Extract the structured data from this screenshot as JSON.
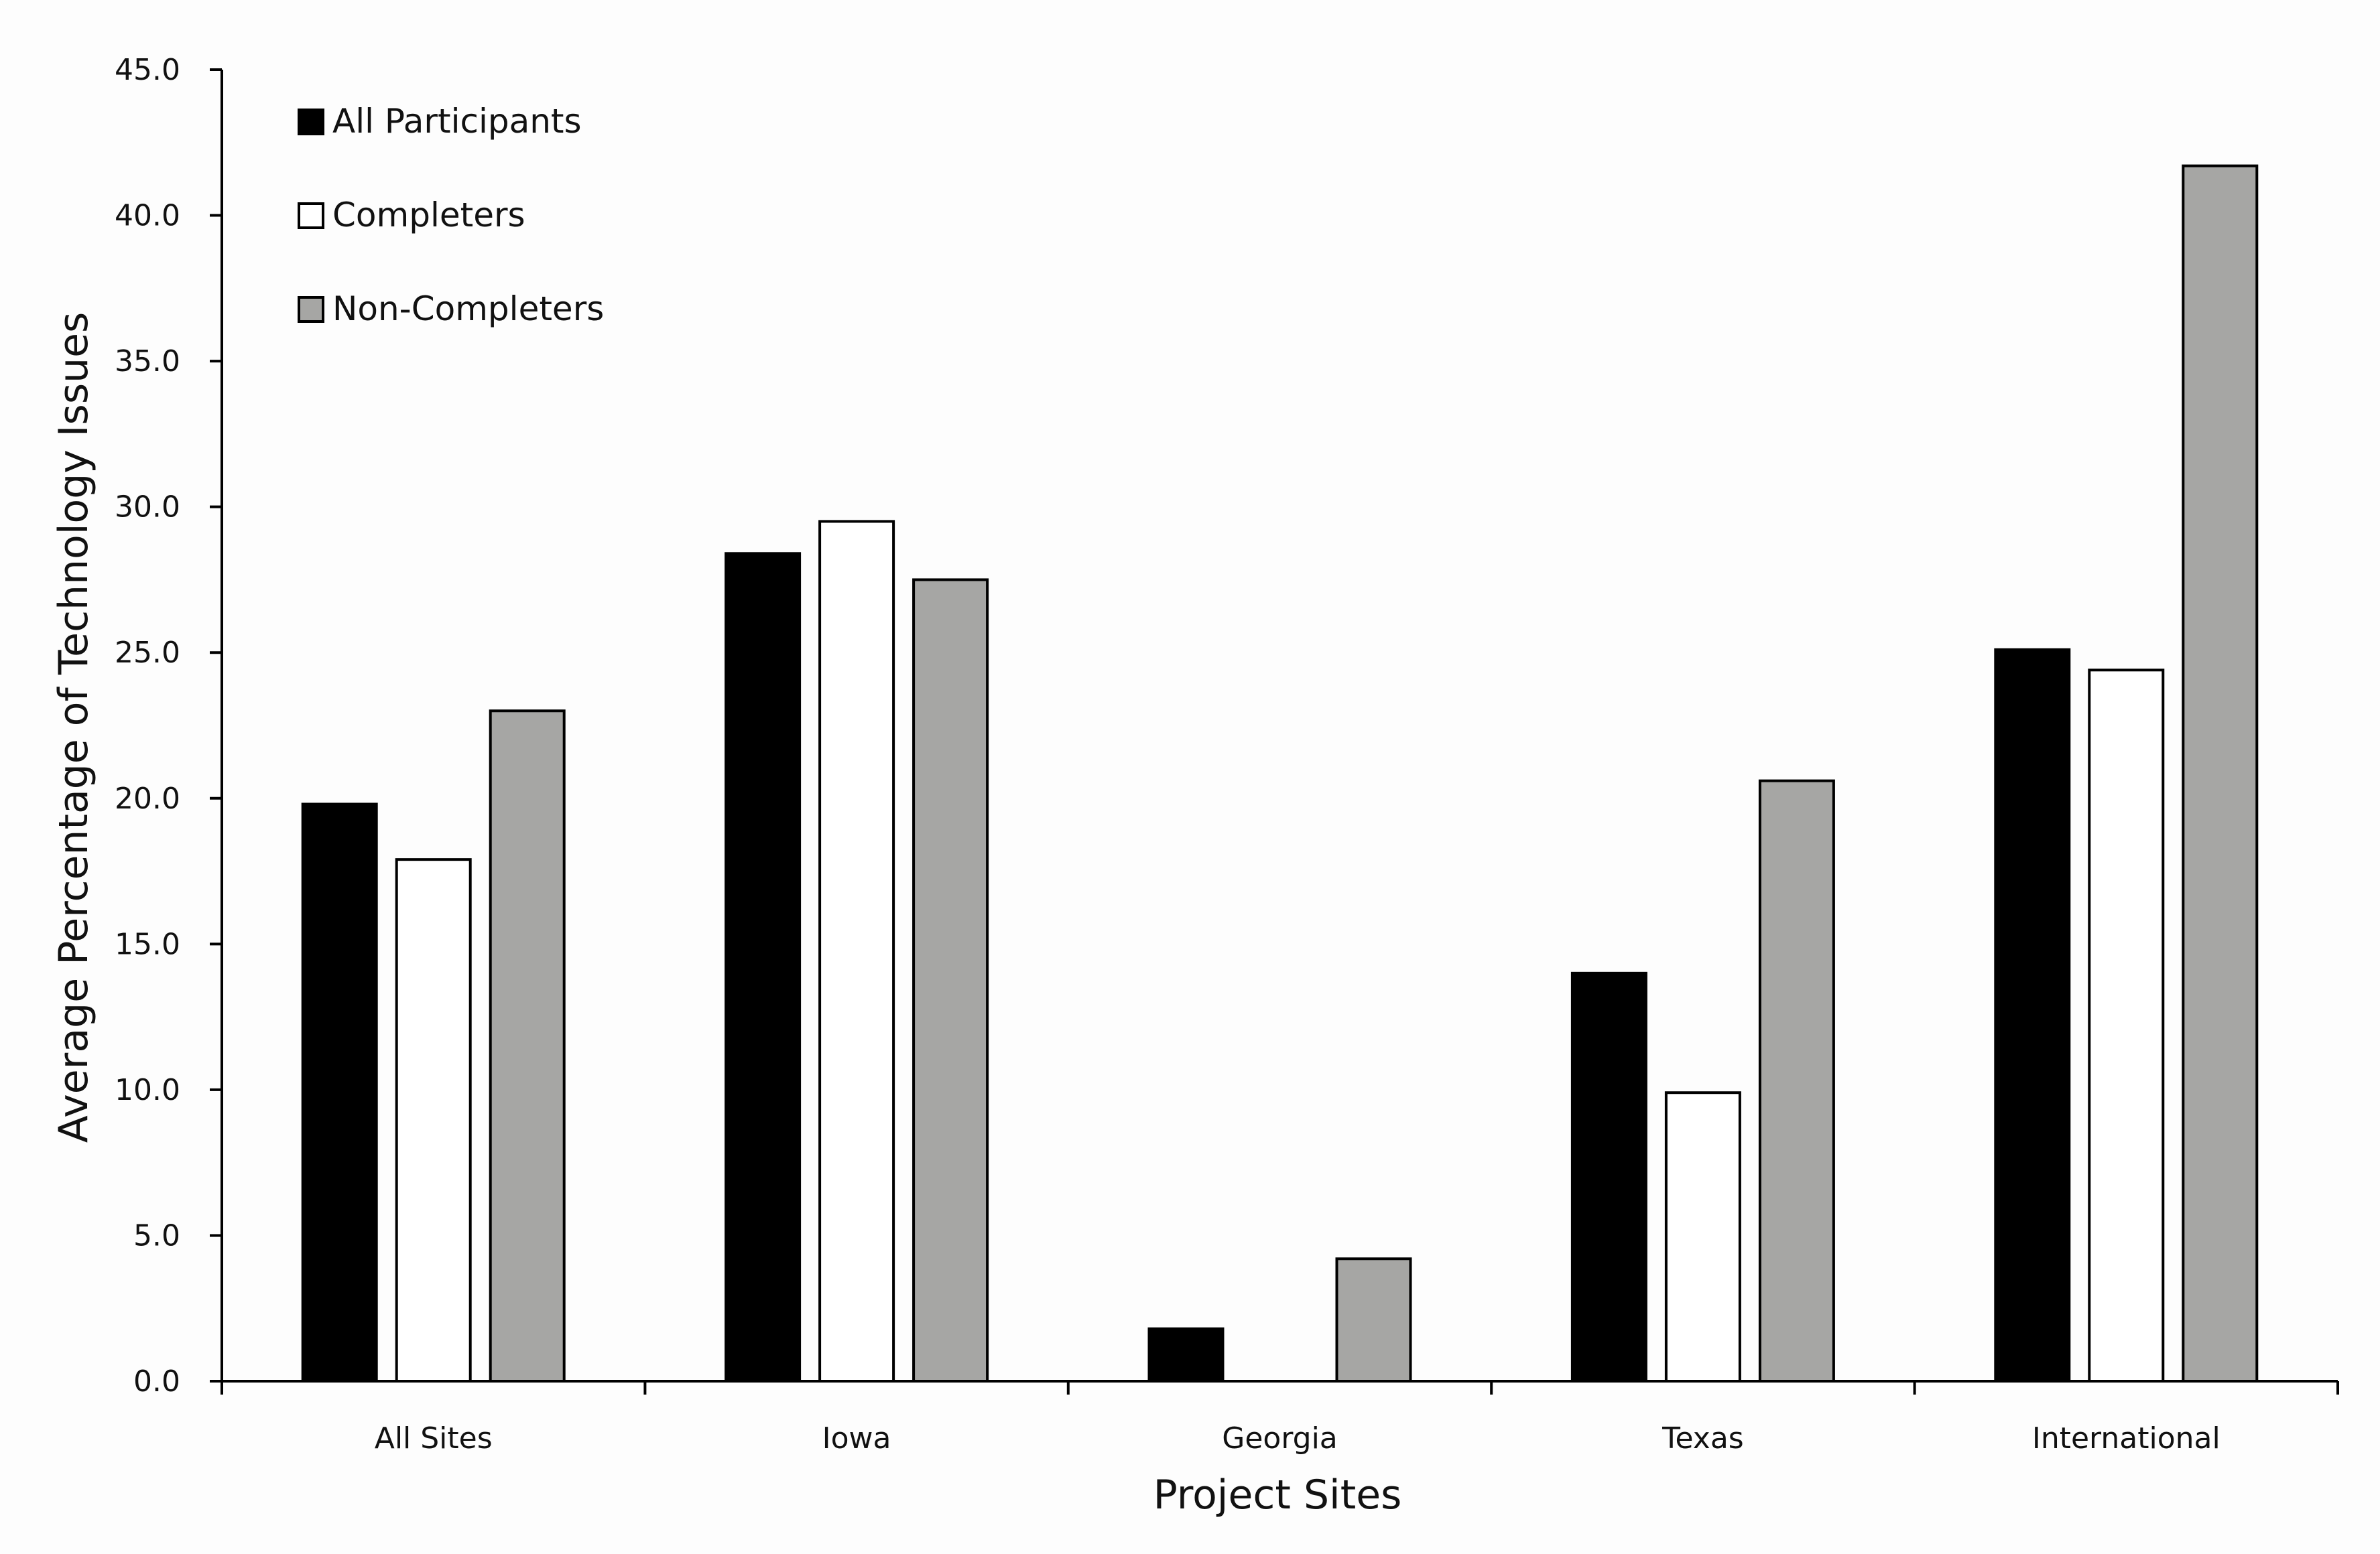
{
  "chart_data": {
    "type": "bar",
    "title": "",
    "xlabel": "Project Sites",
    "ylabel": "Average Percentage of Technology Issues",
    "categories": [
      "All Sites",
      "Iowa",
      "Georgia",
      "Texas",
      "International"
    ],
    "series": [
      {
        "name": "All Participants",
        "color": "#000000",
        "values": [
          19.8,
          28.4,
          1.8,
          14.0,
          25.1
        ]
      },
      {
        "name": "Completers",
        "color": "#ffffff",
        "values": [
          17.9,
          29.5,
          0.0,
          9.9,
          24.4
        ]
      },
      {
        "name": "Non-Completers",
        "color": "#a6a6a4",
        "values": [
          23.0,
          27.5,
          4.2,
          20.6,
          41.7
        ]
      }
    ],
    "ylim": [
      0,
      45
    ],
    "yticks": [
      "0.0",
      "5.0",
      "10.0",
      "15.0",
      "20.0",
      "25.0",
      "30.0",
      "35.0",
      "40.0",
      "45.0"
    ],
    "legend_position": "top-left",
    "grid": false
  }
}
